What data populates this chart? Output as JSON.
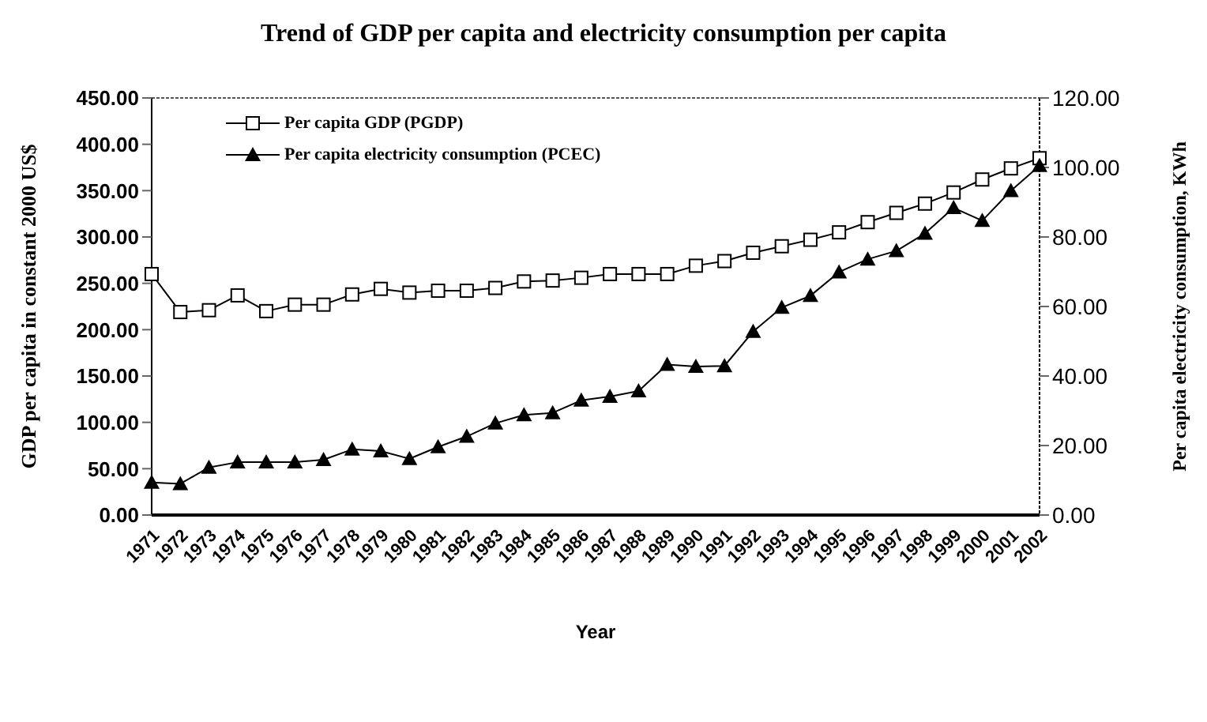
{
  "chart_data": {
    "type": "line",
    "title": "Trend of GDP per capita and electricity consumption per capita",
    "xlabel": "Year",
    "ylabel": "GDP per capita in constant 2000 US$",
    "y2label": "Per capita electricity consumption, KWh",
    "categories": [
      "1971",
      "1972",
      "1973",
      "1974",
      "1975",
      "1976",
      "1977",
      "1978",
      "1979",
      "1980",
      "1981",
      "1982",
      "1983",
      "1984",
      "1985",
      "1986",
      "1987",
      "1988",
      "1989",
      "1990",
      "1991",
      "1992",
      "1993",
      "1994",
      "1995",
      "1996",
      "1997",
      "1998",
      "1999",
      "2000",
      "2001",
      "2002"
    ],
    "series": [
      {
        "name": "Per capita GDP (PGDP)",
        "color": "#000000",
        "marker": "square",
        "values": [
          260,
          219,
          221,
          237,
          220,
          227,
          227,
          238,
          244,
          240,
          242,
          242,
          245,
          252,
          253,
          256,
          260,
          260,
          260,
          269,
          274,
          283,
          290,
          297,
          305,
          316,
          326,
          336,
          348,
          362,
          374,
          385
        ]
      },
      {
        "name": "Per capita electricity consumption (PCEC)",
        "color": "#000000",
        "marker": "triangle",
        "axis": "y2",
        "values": [
          9.4,
          9.0,
          13.7,
          15.2,
          15.2,
          15.2,
          15.9,
          18.9,
          18.4,
          16.2,
          19.6,
          22.6,
          26.4,
          28.8,
          29.4,
          33.0,
          34.1,
          35.7,
          43.3,
          42.7,
          42.9,
          52.8,
          59.7,
          63.1,
          69.9,
          73.6,
          76.0,
          81.0,
          88.4,
          84.7,
          93.3,
          100.5
        ]
      }
    ],
    "ylim": [
      0,
      450
    ],
    "yticks": [
      {
        "value": 0,
        "label": "0.00"
      },
      {
        "value": 50,
        "label": "50.00"
      },
      {
        "value": 100,
        "label": "100.00"
      },
      {
        "value": 150,
        "label": "150.00"
      },
      {
        "value": 200,
        "label": "200.00"
      },
      {
        "value": 250,
        "label": "250.00"
      },
      {
        "value": 300,
        "label": "300.00"
      },
      {
        "value": 350,
        "label": "350.00"
      },
      {
        "value": 400,
        "label": "400.00"
      },
      {
        "value": 450,
        "label": "450.00"
      }
    ],
    "y2lim": [
      0,
      120
    ],
    "y2ticks": [
      {
        "value": 0,
        "label": "0.00"
      },
      {
        "value": 20,
        "label": "20.00"
      },
      {
        "value": 40,
        "label": "40.00"
      },
      {
        "value": 60,
        "label": "60.00"
      },
      {
        "value": 80,
        "label": "80.00"
      },
      {
        "value": 100,
        "label": "100.00"
      },
      {
        "value": 120,
        "label": "120.00"
      }
    ],
    "grid": false,
    "legend": "top left",
    "line_style": "solid"
  }
}
